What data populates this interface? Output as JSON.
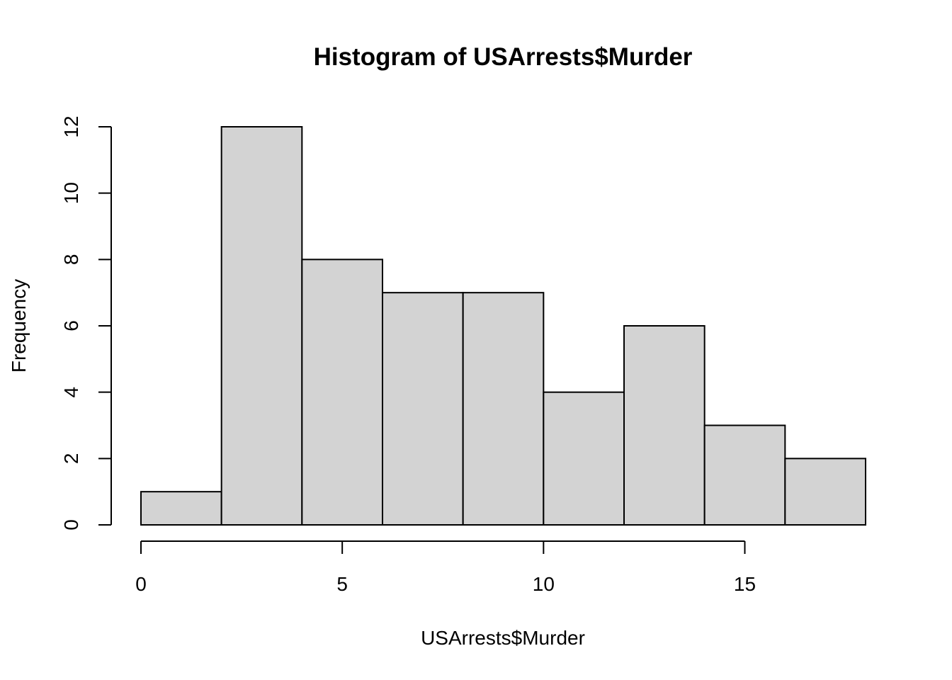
{
  "chart_data": {
    "type": "histogram",
    "title": "Histogram of USArrests$Murder",
    "xlabel": "USArrests$Murder",
    "ylabel": "Frequency",
    "bins": [
      {
        "start": 0,
        "end": 2,
        "count": 1
      },
      {
        "start": 2,
        "end": 4,
        "count": 12
      },
      {
        "start": 4,
        "end": 6,
        "count": 8
      },
      {
        "start": 6,
        "end": 8,
        "count": 7
      },
      {
        "start": 8,
        "end": 10,
        "count": 7
      },
      {
        "start": 10,
        "end": 12,
        "count": 4
      },
      {
        "start": 12,
        "end": 14,
        "count": 6
      },
      {
        "start": 14,
        "end": 16,
        "count": 3
      },
      {
        "start": 16,
        "end": 18,
        "count": 2
      }
    ],
    "x_ticks": [
      0,
      5,
      10,
      15
    ],
    "y_ticks": [
      0,
      2,
      4,
      6,
      8,
      10,
      12
    ],
    "xlim": [
      0,
      18
    ],
    "ylim": [
      0,
      12
    ],
    "bar_fill": "#d3d3d3",
    "bar_stroke": "#000000",
    "grid": false
  }
}
